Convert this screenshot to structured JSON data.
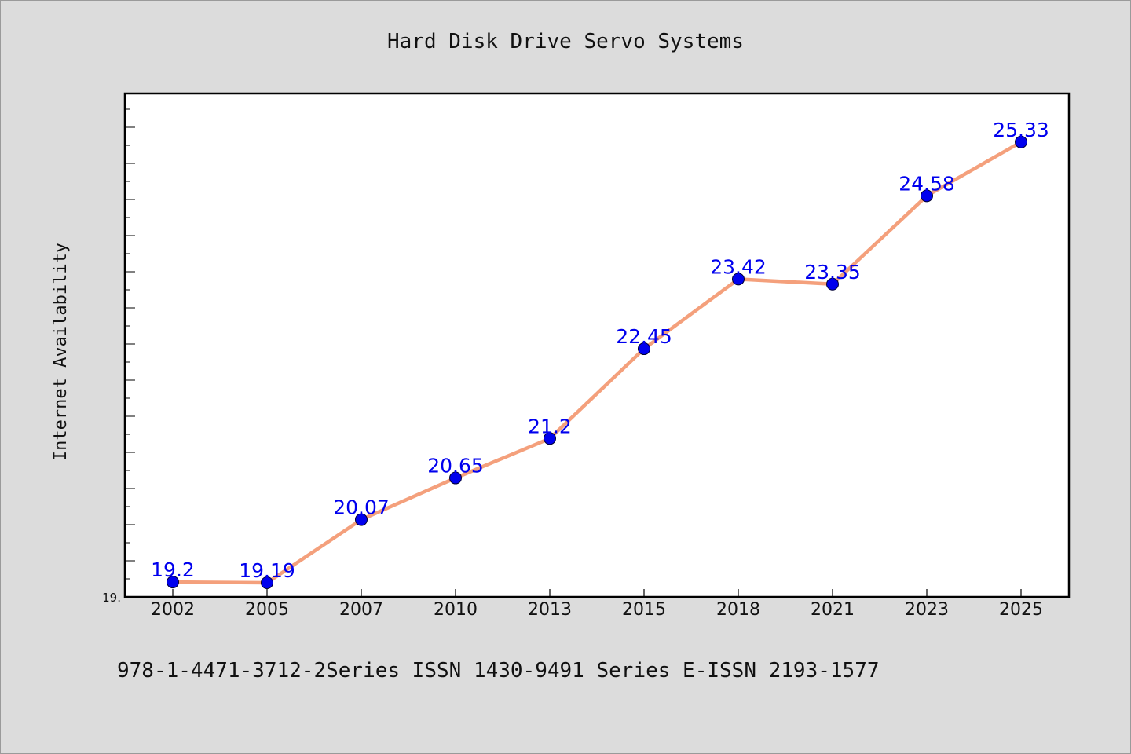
{
  "chart_data": {
    "type": "line",
    "title": "Hard Disk Drive Servo Systems",
    "xlabel": "",
    "ylabel": "Internet Availability",
    "categories": [
      "2002",
      "2005",
      "2007",
      "2010",
      "2013",
      "2015",
      "2018",
      "2021",
      "2023",
      "2025"
    ],
    "series": [
      {
        "values": [
          19.2,
          19.19,
          20.07,
          20.65,
          21.2,
          22.45,
          23.42,
          23.35,
          24.58,
          25.33
        ]
      }
    ],
    "data_labels": [
      "19.2",
      "19.19",
      "20.07",
      "20.65",
      "21.2",
      "22.45",
      "23.42",
      "23.35",
      "24.58",
      "25.33"
    ],
    "y_tick_label": "19.",
    "ylim": [
      19.0,
      26.0
    ],
    "grid": false,
    "line_color": "#f4a07c",
    "marker_color": "#0000ee",
    "label_color": "#0000ee"
  },
  "footer": {
    "text": "978-1-4471-3712-2Series ISSN 1430-9491 Series E-ISSN 2193-1577"
  }
}
